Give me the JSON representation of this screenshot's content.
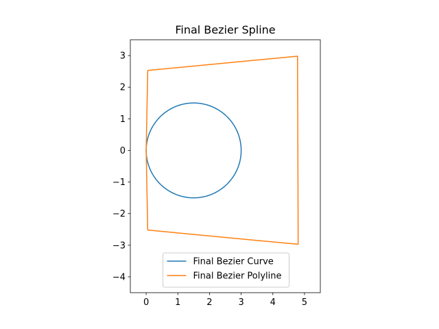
{
  "chart_data": {
    "type": "line",
    "title": "Final Bezier Spline",
    "xlabel": "",
    "ylabel": "",
    "xlim": [
      -0.5,
      5.5
    ],
    "ylim": [
      -4.5,
      3.5
    ],
    "xticks": [
      0,
      1,
      2,
      3,
      4,
      5
    ],
    "xtick_labels": [
      "0",
      "1",
      "2",
      "3",
      "4",
      "5"
    ],
    "yticks": [
      3,
      2,
      1,
      0,
      -1,
      -2,
      -3,
      -4
    ],
    "ytick_labels": [
      "3",
      "2",
      "1",
      "0",
      "−1",
      "−2",
      "−3",
      "−4"
    ],
    "grid": false,
    "legend_position": "lower-center",
    "series": [
      {
        "name": "Final Bezier Curve",
        "color": "#1f77b4",
        "shape": "circle",
        "center": [
          1.5,
          0
        ],
        "radius": 1.5
      },
      {
        "name": "Final Bezier Polyline",
        "color": "#ff7f0e",
        "x": [
          0,
          0.05,
          4.78,
          4.8,
          0.05,
          0
        ],
        "y": [
          0,
          2.53,
          2.98,
          -2.97,
          -2.52,
          0
        ]
      }
    ]
  }
}
